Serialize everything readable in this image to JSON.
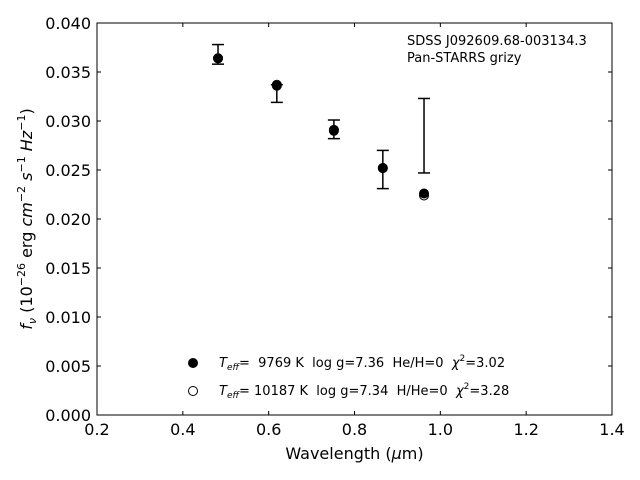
{
  "chart_data": {
    "type": "scatter",
    "xlabel": "Wavelength (μm)",
    "ylabel": "f_ν (10^−26 erg cm^−2 s^−1 Hz^−1)",
    "xlim": [
      0.2,
      1.4
    ],
    "ylim": [
      0.0,
      0.04
    ],
    "x_ticks": [
      "0.2",
      "0.4",
      "0.6",
      "0.8",
      "1.0",
      "1.2",
      "1.4"
    ],
    "y_ticks": [
      "0.000",
      "0.005",
      "0.010",
      "0.015",
      "0.020",
      "0.025",
      "0.030",
      "0.035",
      "0.040"
    ],
    "grid": false,
    "annotation": {
      "line1": "SDSS J092609.68-003134.3",
      "line2": "Pan-STARRS grizy"
    },
    "observed": {
      "x": [
        0.482,
        0.619,
        0.752,
        0.866,
        0.962
      ],
      "y_low": [
        0.0358,
        0.0319,
        0.0282,
        0.0231,
        0.0247
      ],
      "y_high": [
        0.0378,
        0.0337,
        0.0301,
        0.027,
        0.0323
      ]
    },
    "series": [
      {
        "name": "T_eff=  9769 K  log g=7.36  He/H=0  χ²=3.02",
        "marker": "filled",
        "x": [
          0.482,
          0.619,
          0.752,
          0.866,
          0.962
        ],
        "y": [
          0.0364,
          0.0336,
          0.029,
          0.0252,
          0.0226
        ]
      },
      {
        "name": "T_eff= 10187 K  log g=7.34  H/He=0  χ²=3.28",
        "marker": "open",
        "x": [
          0.482,
          0.619,
          0.752,
          0.866,
          0.962
        ],
        "y": [
          0.0364,
          0.0337,
          0.0291,
          0.0252,
          0.0224
        ]
      }
    ],
    "legend": {
      "placement": "lower-center",
      "entries": [
        {
          "teff_label": "=  9769 K  log g=7.36  He/H=0  ",
          "chi_label": "=3.02"
        },
        {
          "teff_label": "= 10187 K  log g=7.34  H/He=0  ",
          "chi_label": "=3.28"
        }
      ]
    }
  }
}
